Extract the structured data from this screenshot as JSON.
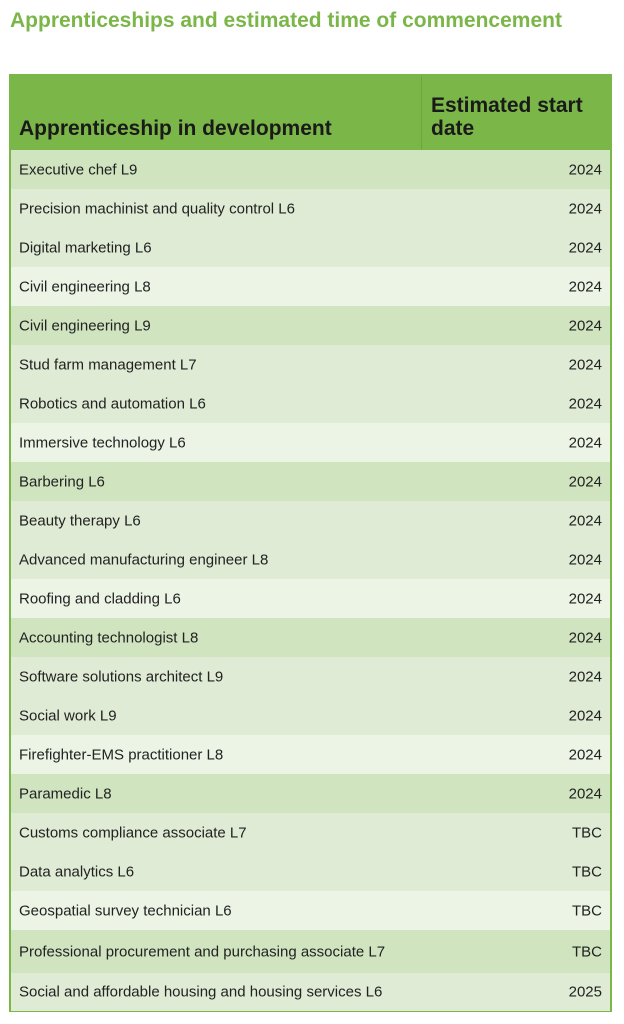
{
  "title": "Apprenticeships and estimated time of commencement",
  "table": {
    "headers": {
      "name": "Apprenticeship in development",
      "date": "Estimated start date"
    },
    "rows": [
      {
        "name": "Executive chef L9",
        "date": "2024"
      },
      {
        "name": "Precision machinist and quality control L6",
        "date": "2024"
      },
      {
        "name": "Digital marketing L6",
        "date": "2024"
      },
      {
        "name": "Civil engineering L8",
        "date": "2024"
      },
      {
        "name": "Civil engineering L9",
        "date": "2024"
      },
      {
        "name": "Stud farm management L7",
        "date": "2024"
      },
      {
        "name": "Robotics and automation L6",
        "date": "2024"
      },
      {
        "name": "Immersive technology L6",
        "date": "2024"
      },
      {
        "name": "Barbering L6",
        "date": "2024"
      },
      {
        "name": "Beauty therapy L6",
        "date": "2024"
      },
      {
        "name": "Advanced manufacturing engineer L8",
        "date": "2024"
      },
      {
        "name": "Roofing and cladding L6",
        "date": "2024"
      },
      {
        "name": "Accounting technologist L8",
        "date": "2024"
      },
      {
        "name": "Software solutions architect L9",
        "date": "2024"
      },
      {
        "name": "Social work L9",
        "date": "2024"
      },
      {
        "name": "Firefighter-EMS practitioner L8",
        "date": "2024"
      },
      {
        "name": "Paramedic L8",
        "date": "2024"
      },
      {
        "name": "Customs compliance associate L7",
        "date": "TBC"
      },
      {
        "name": "Data analytics L6",
        "date": "TBC"
      },
      {
        "name": "Geospatial survey technician L6",
        "date": "TBC"
      },
      {
        "name": "Professional procurement and purchasing associate L7",
        "date": "TBC"
      },
      {
        "name": "Social and affordable housing and housing services L6",
        "date": "2025"
      }
    ]
  },
  "colors": {
    "accent": "#7ab648",
    "row_dark": "#d0e4c0",
    "row_mid": "#dfebd4",
    "row_light": "#ecf4e6"
  }
}
